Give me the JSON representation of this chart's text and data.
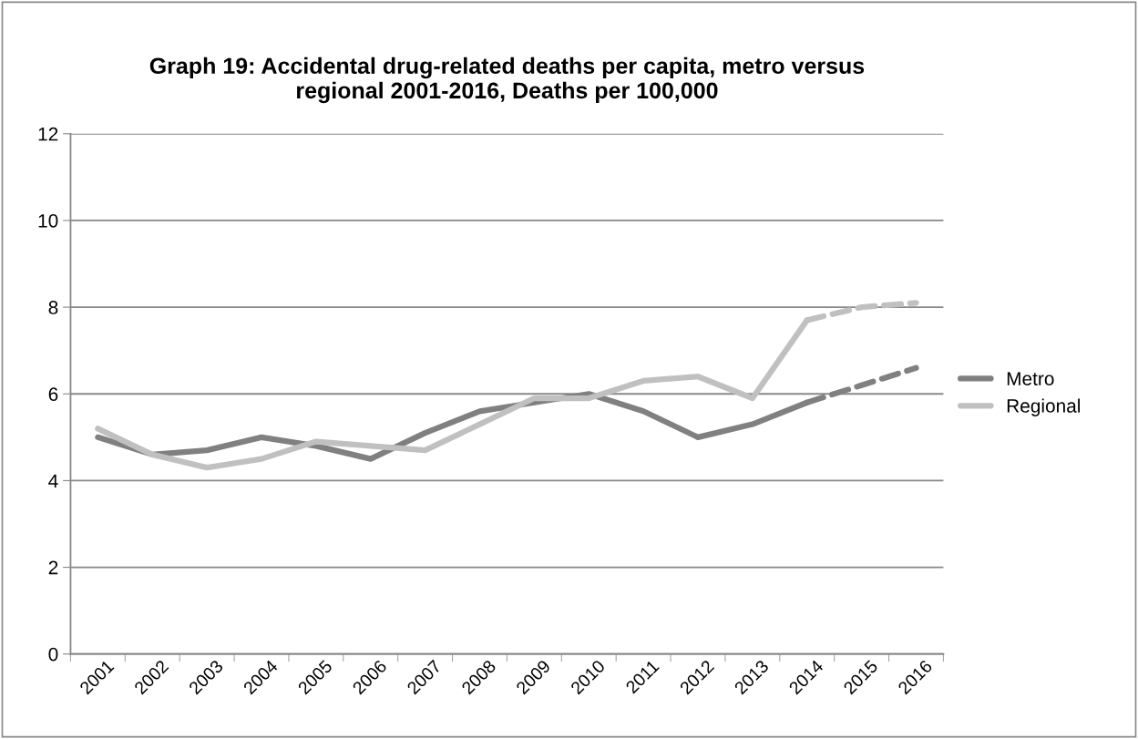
{
  "chart_data": {
    "type": "line",
    "title": "Graph 19: Accidental drug-related deaths per capita, metro versus\nregional 2001-2016, Deaths per 100,000",
    "categories": [
      "2001",
      "2002",
      "2003",
      "2004",
      "2005",
      "2006",
      "2007",
      "2008",
      "2009",
      "2010",
      "2011",
      "2012",
      "2013",
      "2014",
      "2015",
      "2016"
    ],
    "series": [
      {
        "name": "Metro",
        "color": "#808080",
        "line_style": "solid",
        "values": [
          5.0,
          4.6,
          4.7,
          5.0,
          4.8,
          4.5,
          5.1,
          5.6,
          5.8,
          6.0,
          5.6,
          5.0,
          5.3,
          5.8,
          null,
          null
        ]
      },
      {
        "name": "Regional",
        "color": "#c0c0c0",
        "line_style": "solid",
        "values": [
          5.2,
          4.6,
          4.3,
          4.5,
          4.9,
          4.8,
          4.7,
          5.3,
          5.9,
          5.9,
          6.3,
          6.4,
          5.9,
          7.7,
          null,
          null
        ]
      },
      {
        "color": "#808080",
        "line_style": "dashed",
        "values": [
          null,
          null,
          null,
          null,
          null,
          null,
          null,
          null,
          null,
          null,
          null,
          null,
          null,
          5.8,
          6.2,
          6.6
        ]
      },
      {
        "color": "#c0c0c0",
        "line_style": "dashed",
        "values": [
          null,
          null,
          null,
          null,
          null,
          null,
          null,
          null,
          null,
          null,
          null,
          null,
          null,
          7.7,
          8.0,
          8.1
        ]
      }
    ],
    "ylim": [
      0,
      12
    ],
    "yticks": [
      0,
      2,
      4,
      6,
      8,
      10,
      12
    ],
    "grid": "y",
    "legend": "right",
    "marker": "none"
  }
}
